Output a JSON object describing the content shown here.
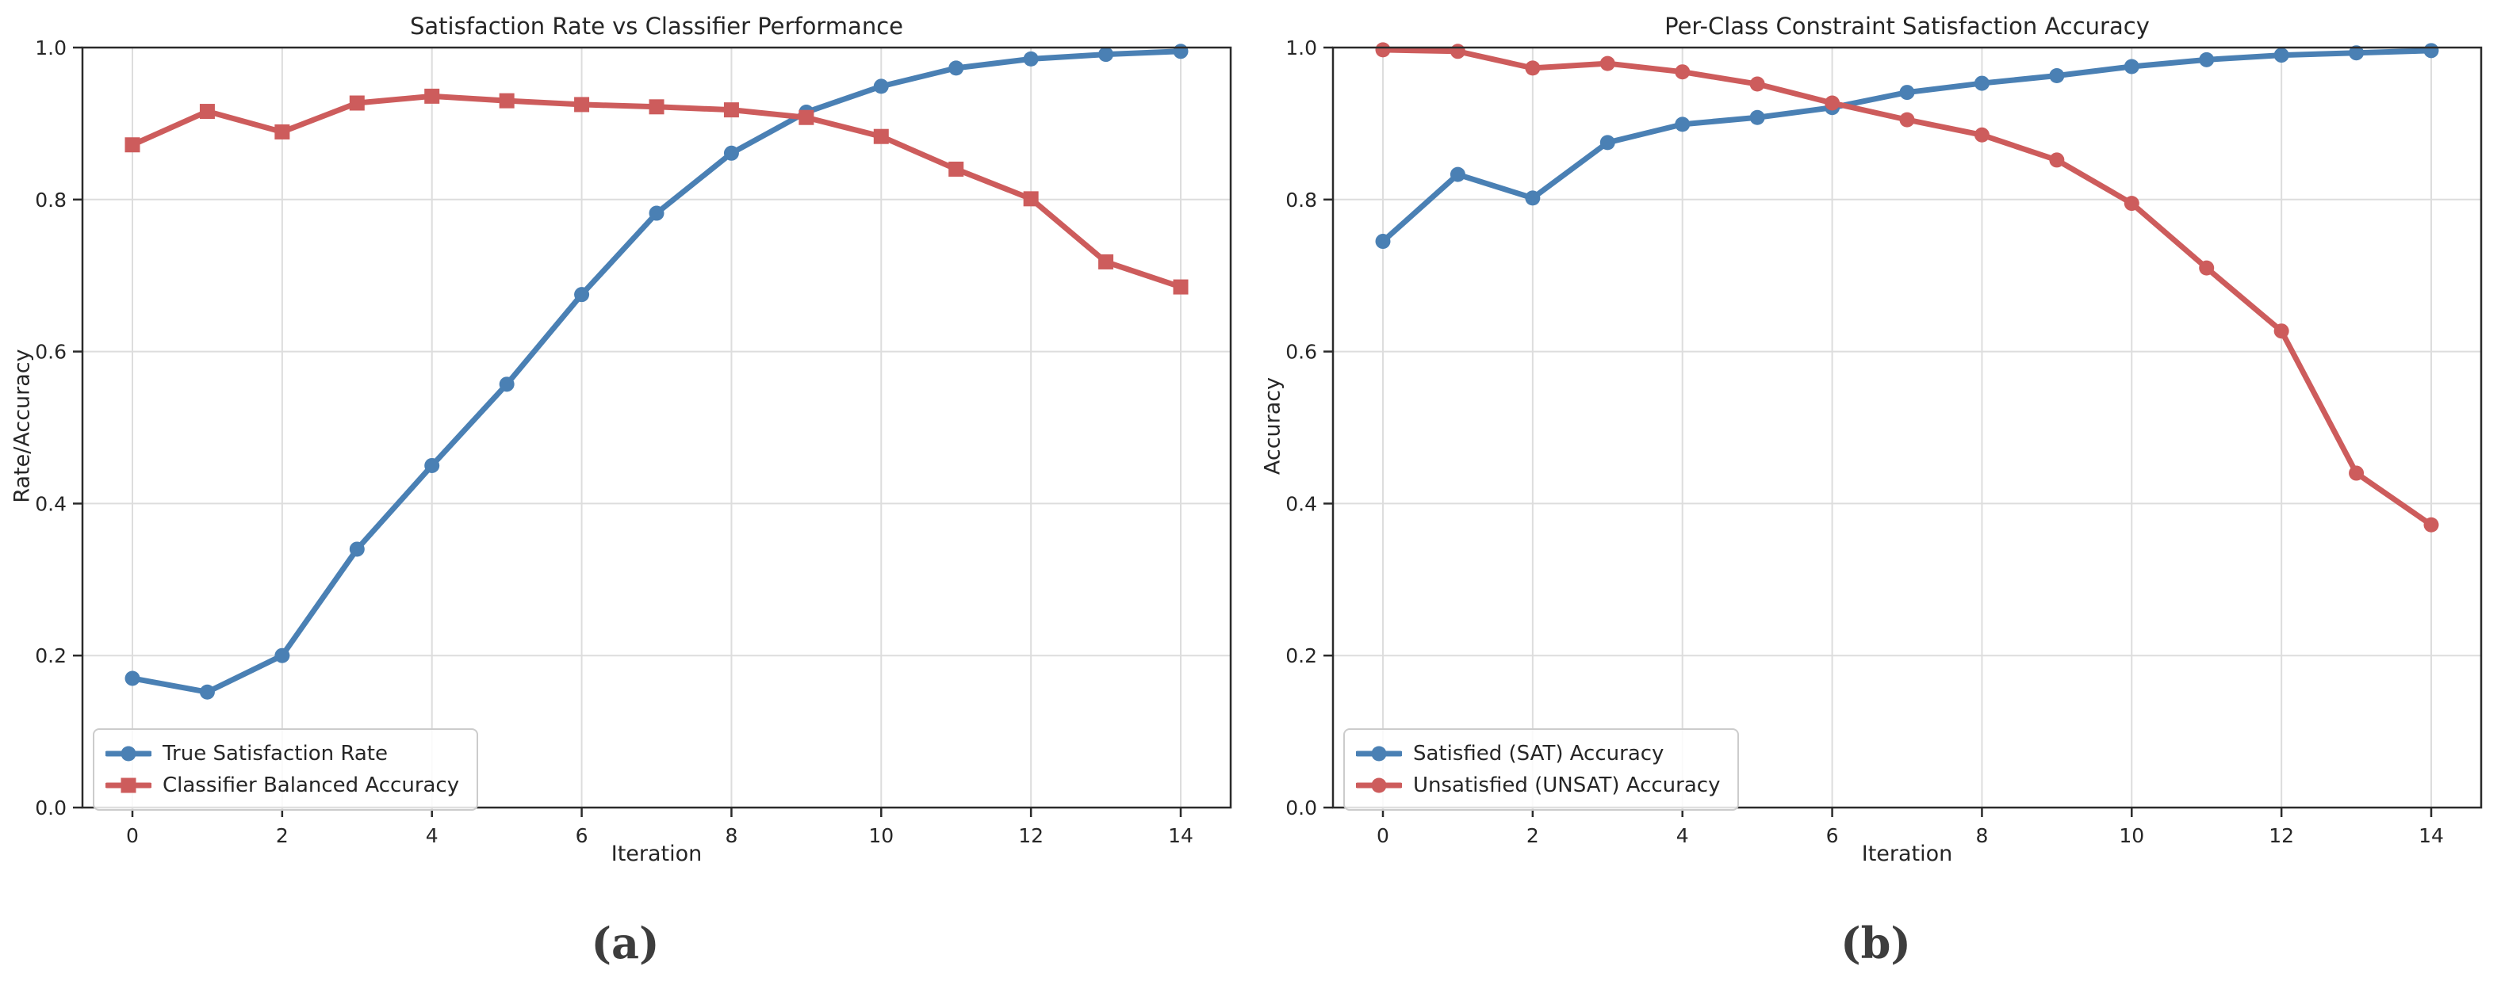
{
  "page": {
    "background": "#ffffff"
  },
  "colors": {
    "blue_series": "#4a80b4",
    "red_series": "#cd5c5c",
    "grid": "#dddddd",
    "spine": "#2b2b2b",
    "text": "#262626",
    "legend_border": "#cccccc"
  },
  "captions": {
    "a": "(a)",
    "b": "(b)"
  },
  "chart_data": [
    {
      "type": "line",
      "title": "Satisfaction Rate vs Classifier Performance",
      "xlabel": "Iteration",
      "ylabel": "Rate/Accuracy",
      "x": [
        0,
        1,
        2,
        3,
        4,
        5,
        6,
        7,
        8,
        9,
        10,
        11,
        12,
        13,
        14
      ],
      "xlim": [
        -0.7,
        14.7
      ],
      "ylim": [
        0.0,
        1.0
      ],
      "xticks": {
        "values": [
          0,
          2,
          4,
          6,
          8,
          10,
          12,
          14
        ],
        "labels": [
          "0",
          "2",
          "4",
          "6",
          "8",
          "10",
          "12",
          "14"
        ]
      },
      "yticks": {
        "values": [
          0.0,
          0.2,
          0.4,
          0.6,
          0.8,
          1.0
        ],
        "labels": [
          "0.0",
          "0.2",
          "0.4",
          "0.6",
          "0.8",
          "1.0"
        ]
      },
      "grid": true,
      "legend_position": "lower left",
      "series": [
        {
          "name": "True Satisfaction Rate",
          "color": "#4a80b4",
          "marker": "circle",
          "values": [
            0.17,
            0.152,
            0.2,
            0.34,
            0.45,
            0.557,
            0.675,
            0.782,
            0.861,
            0.915,
            0.949,
            0.973,
            0.985,
            0.991,
            0.995
          ]
        },
        {
          "name": "Classifier Balanced Accuracy",
          "color": "#cd5c5c",
          "marker": "square",
          "values": [
            0.872,
            0.916,
            0.889,
            0.927,
            0.936,
            0.93,
            0.925,
            0.922,
            0.918,
            0.908,
            0.883,
            0.84,
            0.801,
            0.718,
            0.685
          ]
        }
      ]
    },
    {
      "type": "line",
      "title": "Per-Class Constraint Satisfaction Accuracy",
      "xlabel": "Iteration",
      "ylabel": "Accuracy",
      "x": [
        0,
        1,
        2,
        3,
        4,
        5,
        6,
        7,
        8,
        9,
        10,
        11,
        12,
        13,
        14
      ],
      "xlim": [
        -0.7,
        14.7
      ],
      "ylim": [
        0.0,
        1.0
      ],
      "xticks": {
        "values": [
          0,
          2,
          4,
          6,
          8,
          10,
          12,
          14
        ],
        "labels": [
          "0",
          "2",
          "4",
          "6",
          "8",
          "10",
          "12",
          "14"
        ]
      },
      "yticks": {
        "values": [
          0.0,
          0.2,
          0.4,
          0.6,
          0.8,
          1.0
        ],
        "labels": [
          "0.0",
          "0.2",
          "0.4",
          "0.6",
          "0.8",
          "1.0"
        ]
      },
      "grid": true,
      "legend_position": "lower left",
      "series": [
        {
          "name": "Satisfied (SAT) Accuracy",
          "color": "#4a80b4",
          "marker": "circle",
          "values": [
            0.745,
            0.833,
            0.802,
            0.875,
            0.899,
            0.908,
            0.921,
            0.941,
            0.953,
            0.963,
            0.975,
            0.984,
            0.99,
            0.993,
            0.996
          ]
        },
        {
          "name": "Unsatisfied (UNSAT) Accuracy",
          "color": "#cd5c5c",
          "marker": "circle",
          "values": [
            0.997,
            0.995,
            0.973,
            0.979,
            0.968,
            0.952,
            0.927,
            0.905,
            0.885,
            0.852,
            0.795,
            0.71,
            0.627,
            0.44,
            0.372
          ]
        }
      ]
    }
  ]
}
